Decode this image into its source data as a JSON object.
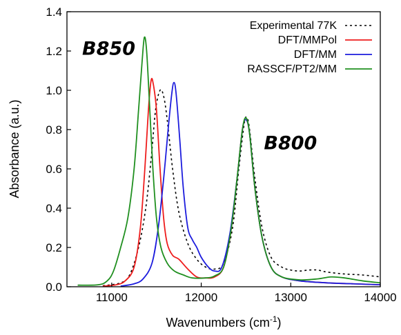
{
  "chart_data": {
    "type": "line",
    "xlabel": "Wavenumbers (cm",
    "xlabel_sup": "-1",
    "xlabel_close": ")",
    "ylabel": "Absorbance (a.u.)",
    "xlim": [
      10500,
      14000
    ],
    "ylim": [
      0,
      1.4
    ],
    "xticks": [
      11000,
      12000,
      13000,
      14000
    ],
    "xtick_labels": [
      "11000",
      "12000",
      "13000",
      "14000"
    ],
    "yticks": [
      0.0,
      0.2,
      0.4,
      0.6,
      0.8,
      1.0,
      1.2,
      1.4
    ],
    "ytick_labels": [
      "0.0",
      "0.2",
      "0.4",
      "0.6",
      "0.8",
      "1.0",
      "1.2",
      "1.4"
    ],
    "grid": false,
    "legend_position": "top-right",
    "annotations": [
      {
        "text": "B850",
        "x": 10670,
        "y": 1.18
      },
      {
        "text": "B800",
        "x": 12700,
        "y": 0.7
      }
    ],
    "series": [
      {
        "name": "Experimental 77K",
        "color": "#000000",
        "dash": "3,4",
        "points": [
          [
            10900,
            0.005
          ],
          [
            11100,
            0.02
          ],
          [
            11200,
            0.06
          ],
          [
            11300,
            0.2
          ],
          [
            11380,
            0.4
          ],
          [
            11440,
            0.65
          ],
          [
            11490,
            0.9
          ],
          [
            11540,
            1.0
          ],
          [
            11580,
            0.97
          ],
          [
            11620,
            0.85
          ],
          [
            11680,
            0.6
          ],
          [
            11750,
            0.38
          ],
          [
            11850,
            0.22
          ],
          [
            11950,
            0.14
          ],
          [
            12050,
            0.1
          ],
          [
            12150,
            0.09
          ],
          [
            12250,
            0.12
          ],
          [
            12350,
            0.3
          ],
          [
            12420,
            0.6
          ],
          [
            12480,
            0.83
          ],
          [
            12510,
            0.86
          ],
          [
            12540,
            0.8
          ],
          [
            12600,
            0.55
          ],
          [
            12680,
            0.3
          ],
          [
            12780,
            0.15
          ],
          [
            12900,
            0.1
          ],
          [
            13000,
            0.085
          ],
          [
            13100,
            0.08
          ],
          [
            13200,
            0.085
          ],
          [
            13300,
            0.085
          ],
          [
            13400,
            0.075
          ],
          [
            13600,
            0.065
          ],
          [
            13800,
            0.06
          ],
          [
            14000,
            0.05
          ]
        ]
      },
      {
        "name": "DFT/MMPol",
        "color": "#ee1c1c",
        "dash": "",
        "points": [
          [
            10900,
            0.003
          ],
          [
            11050,
            0.01
          ],
          [
            11150,
            0.03
          ],
          [
            11250,
            0.1
          ],
          [
            11320,
            0.3
          ],
          [
            11370,
            0.6
          ],
          [
            11410,
            0.9
          ],
          [
            11440,
            1.05
          ],
          [
            11465,
            1.03
          ],
          [
            11500,
            0.9
          ],
          [
            11540,
            0.6
          ],
          [
            11580,
            0.35
          ],
          [
            11620,
            0.22
          ],
          [
            11680,
            0.16
          ],
          [
            11750,
            0.14
          ],
          [
            11850,
            0.09
          ],
          [
            11950,
            0.05
          ],
          [
            12050,
            0.045
          ],
          [
            12150,
            0.05
          ],
          [
            12250,
            0.1
          ],
          [
            12330,
            0.28
          ],
          [
            12400,
            0.55
          ],
          [
            12460,
            0.8
          ],
          [
            12500,
            0.85
          ],
          [
            12540,
            0.78
          ],
          [
            12600,
            0.5
          ],
          [
            12680,
            0.25
          ],
          [
            12780,
            0.1
          ],
          [
            12900,
            0.05
          ],
          [
            13100,
            0.03
          ],
          [
            13400,
            0.02
          ],
          [
            13700,
            0.015
          ],
          [
            14000,
            0.01
          ]
        ]
      },
      {
        "name": "DFT/MM",
        "color": "#1c1cdd",
        "dash": "",
        "points": [
          [
            11100,
            0.003
          ],
          [
            11250,
            0.015
          ],
          [
            11350,
            0.04
          ],
          [
            11450,
            0.12
          ],
          [
            11520,
            0.3
          ],
          [
            11580,
            0.55
          ],
          [
            11630,
            0.8
          ],
          [
            11670,
            0.98
          ],
          [
            11695,
            1.04
          ],
          [
            11720,
            0.98
          ],
          [
            11760,
            0.75
          ],
          [
            11800,
            0.5
          ],
          [
            11850,
            0.3
          ],
          [
            11900,
            0.24
          ],
          [
            11950,
            0.2
          ],
          [
            12000,
            0.15
          ],
          [
            12080,
            0.1
          ],
          [
            12150,
            0.08
          ],
          [
            12230,
            0.1
          ],
          [
            12320,
            0.27
          ],
          [
            12400,
            0.55
          ],
          [
            12460,
            0.8
          ],
          [
            12500,
            0.85
          ],
          [
            12540,
            0.78
          ],
          [
            12600,
            0.5
          ],
          [
            12680,
            0.25
          ],
          [
            12780,
            0.1
          ],
          [
            12900,
            0.05
          ],
          [
            13100,
            0.03
          ],
          [
            13400,
            0.02
          ],
          [
            13700,
            0.015
          ],
          [
            14000,
            0.01
          ]
        ]
      },
      {
        "name": "RASSCF/PT2/MM",
        "color": "#1f8f1f",
        "dash": "",
        "points": [
          [
            10620,
            0.008
          ],
          [
            10850,
            0.01
          ],
          [
            10950,
            0.03
          ],
          [
            11020,
            0.08
          ],
          [
            11100,
            0.2
          ],
          [
            11180,
            0.35
          ],
          [
            11250,
            0.6
          ],
          [
            11300,
            0.9
          ],
          [
            11340,
            1.15
          ],
          [
            11365,
            1.27
          ],
          [
            11390,
            1.2
          ],
          [
            11420,
            0.95
          ],
          [
            11460,
            0.6
          ],
          [
            11500,
            0.35
          ],
          [
            11550,
            0.2
          ],
          [
            11620,
            0.12
          ],
          [
            11700,
            0.08
          ],
          [
            11800,
            0.06
          ],
          [
            11900,
            0.045
          ],
          [
            12050,
            0.045
          ],
          [
            12150,
            0.055
          ],
          [
            12250,
            0.1
          ],
          [
            12330,
            0.28
          ],
          [
            12400,
            0.55
          ],
          [
            12460,
            0.8
          ],
          [
            12500,
            0.86
          ],
          [
            12540,
            0.78
          ],
          [
            12600,
            0.5
          ],
          [
            12680,
            0.25
          ],
          [
            12780,
            0.1
          ],
          [
            12900,
            0.05
          ],
          [
            13100,
            0.035
          ],
          [
            13300,
            0.04
          ],
          [
            13450,
            0.05
          ],
          [
            13600,
            0.045
          ],
          [
            13800,
            0.03
          ],
          [
            14000,
            0.02
          ]
        ]
      }
    ]
  }
}
